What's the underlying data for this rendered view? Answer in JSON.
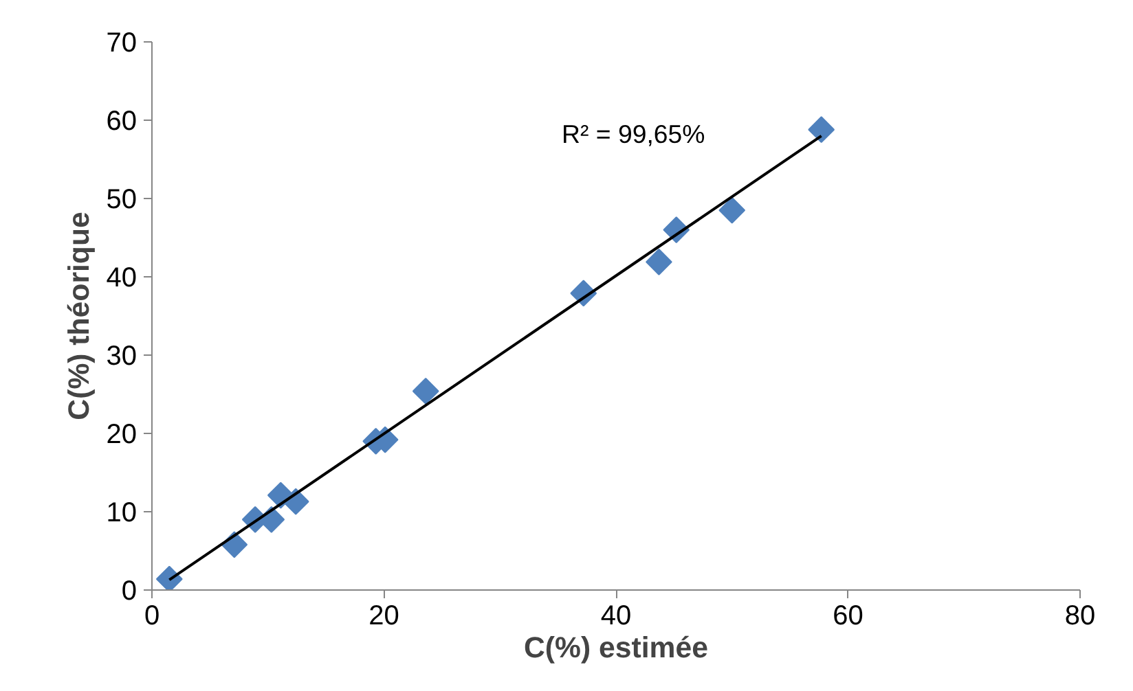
{
  "chart_data": {
    "type": "scatter",
    "xlabel": "C(%) estimée",
    "ylabel": "C(%) théorique",
    "xlim": [
      0,
      80
    ],
    "ylim": [
      0,
      70
    ],
    "xticks": [
      0,
      20,
      40,
      60,
      80
    ],
    "yticks": [
      0,
      10,
      20,
      30,
      40,
      50,
      60,
      70
    ],
    "grid": false,
    "annotations": [
      "R² = 99,65%"
    ],
    "series": [
      {
        "marker": "diamond",
        "color": "#4f81bd",
        "x": [
          1.5,
          7.1,
          8.9,
          10.3,
          11.1,
          12.4,
          19.3,
          20.1,
          23.6,
          37.2,
          43.7,
          45.2,
          50.0,
          57.7
        ],
        "values": [
          1.4,
          5.8,
          9.0,
          9.0,
          12.1,
          11.3,
          19.0,
          19.2,
          25.4,
          37.9,
          41.9,
          46.0,
          48.5,
          58.8
        ]
      },
      {
        "type": "line",
        "color": "#000000",
        "x": [
          1.5,
          57.7
        ],
        "values": [
          1.3,
          58.0
        ]
      }
    ]
  }
}
